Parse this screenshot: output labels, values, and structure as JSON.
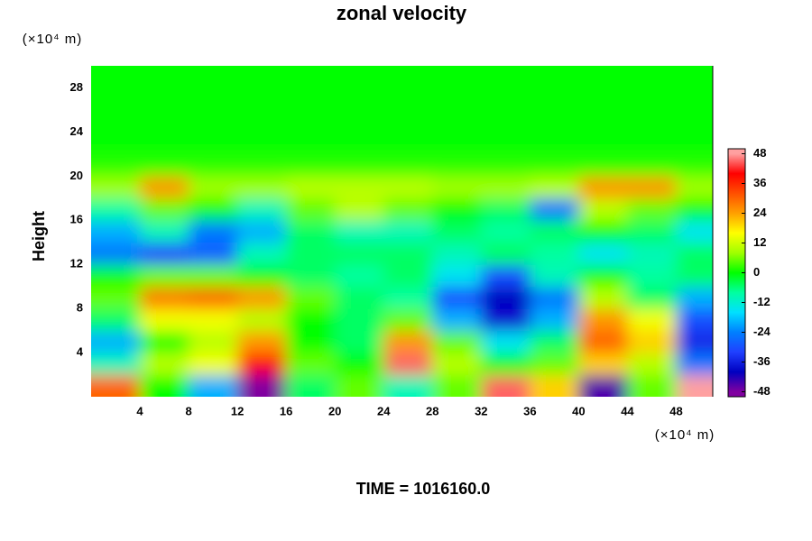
{
  "chart_data": {
    "type": "heatmap",
    "title": "zonal velocity",
    "ylabel": "Height",
    "x_unit": "(×10⁴ m)",
    "y_unit": "(×10⁴ m)",
    "footer": "TIME = 1016160.0",
    "xlim": [
      0,
      51
    ],
    "ylim": [
      0,
      30
    ],
    "xticks": [
      4,
      8,
      12,
      16,
      20,
      24,
      28,
      32,
      36,
      40,
      44,
      48
    ],
    "yticks": [
      4,
      8,
      12,
      16,
      20,
      24,
      28
    ],
    "x": [
      2,
      6,
      10,
      14,
      18,
      22,
      26,
      30,
      34,
      38,
      42,
      46,
      50
    ],
    "y": [
      1,
      3,
      5,
      7,
      9,
      11,
      13,
      15,
      17,
      19,
      21,
      23,
      25,
      27,
      29
    ],
    "z": [
      [
        30,
        0,
        -20,
        -48,
        -5,
        5,
        -10,
        5,
        45,
        20,
        -45,
        5,
        48
      ],
      [
        -10,
        10,
        15,
        40,
        5,
        0,
        45,
        10,
        0,
        5,
        20,
        10,
        -25
      ],
      [
        -20,
        0,
        10,
        25,
        0,
        -5,
        25,
        5,
        -15,
        -5,
        30,
        20,
        -35
      ],
      [
        -5,
        15,
        15,
        10,
        0,
        -5,
        5,
        -20,
        -38,
        -20,
        25,
        15,
        -30
      ],
      [
        5,
        28,
        30,
        25,
        5,
        -5,
        -8,
        -30,
        -40,
        -25,
        10,
        -5,
        -20
      ],
      [
        0,
        5,
        5,
        0,
        -5,
        -8,
        -5,
        -15,
        -30,
        -10,
        0,
        -8,
        -5
      ],
      [
        -25,
        -32,
        -28,
        -10,
        -5,
        -5,
        -5,
        -10,
        -5,
        -8,
        -15,
        -10,
        -5
      ],
      [
        -20,
        -10,
        -25,
        -20,
        -5,
        -10,
        -10,
        -5,
        -8,
        -5,
        0,
        -5,
        -15
      ],
      [
        -8,
        5,
        0,
        -10,
        5,
        10,
        5,
        0,
        -5,
        -25,
        10,
        5,
        0
      ],
      [
        8,
        25,
        8,
        8,
        10,
        10,
        10,
        8,
        8,
        10,
        25,
        25,
        8
      ],
      [
        2,
        2,
        2,
        2,
        2,
        2,
        2,
        2,
        2,
        2,
        2,
        2,
        2
      ],
      [
        0,
        0,
        0,
        0,
        0,
        0,
        0,
        0,
        0,
        0,
        0,
        0,
        0
      ],
      [
        0,
        0,
        0,
        0,
        0,
        0,
        0,
        0,
        0,
        0,
        0,
        0,
        0
      ],
      [
        0,
        0,
        0,
        0,
        0,
        0,
        0,
        0,
        0,
        0,
        0,
        0,
        0
      ],
      [
        0,
        0,
        0,
        0,
        0,
        0,
        0,
        0,
        0,
        0,
        0,
        0,
        0
      ]
    ],
    "clim": [
      -50,
      50
    ],
    "cticks": [
      48,
      36,
      24,
      12,
      0,
      -12,
      -24,
      -36,
      -48
    ],
    "colormap": [
      {
        "value": -48,
        "color": "#8000a0"
      },
      {
        "value": -40,
        "color": "#0000c0"
      },
      {
        "value": -32,
        "color": "#2040ff"
      },
      {
        "value": -24,
        "color": "#0080ff"
      },
      {
        "value": -16,
        "color": "#00e0ff"
      },
      {
        "value": -8,
        "color": "#00ffa0"
      },
      {
        "value": 0,
        "color": "#00ff00"
      },
      {
        "value": 8,
        "color": "#a0ff00"
      },
      {
        "value": 16,
        "color": "#ffff00"
      },
      {
        "value": 24,
        "color": "#ffa000"
      },
      {
        "value": 32,
        "color": "#ff5000"
      },
      {
        "value": 40,
        "color": "#ff0000"
      },
      {
        "value": 48,
        "color": "#ffa0a0"
      }
    ]
  }
}
